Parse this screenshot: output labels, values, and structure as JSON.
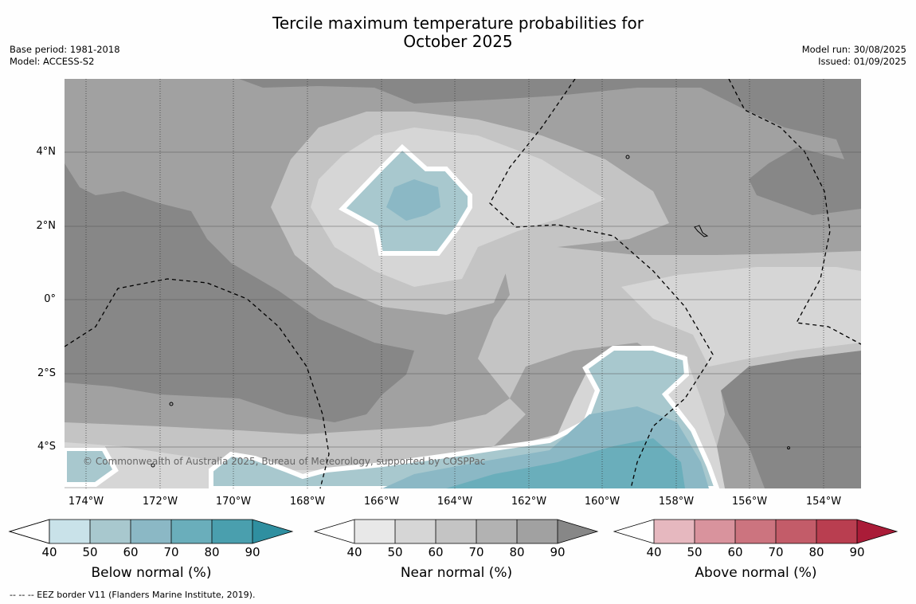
{
  "title_line1": "Tercile maximum temperature probabilities for",
  "title_line2": "October 2025",
  "base_period": "Base period: 1981-2018",
  "model": "Model: ACCESS-S2",
  "model_run": "Model run: 30/08/2025",
  "issued": "Issued: 01/09/2025",
  "copyright": "© Commonwealth of Australia 2025, Bureau of Meteorology, supported by COSPPac",
  "footnote": "--  --  -- EEZ border V11 (Flanders Marine Institute, 2019).",
  "axes": {
    "lat_ticks": [
      "4°N",
      "2°N",
      "0°",
      "2°S",
      "4°S"
    ],
    "lon_ticks": [
      "174°W",
      "172°W",
      "170°W",
      "168°W",
      "166°W",
      "164°W",
      "162°W",
      "160°W",
      "158°W",
      "156°W",
      "154°W"
    ]
  },
  "colorbars": [
    {
      "title": "Below normal (%)",
      "ticks": [
        "40",
        "50",
        "60",
        "70",
        "80",
        "90"
      ],
      "colors": [
        "#ffffff",
        "#c9e2e9",
        "#a8c8ce",
        "#8bb8c5",
        "#6aaebb",
        "#4a9fae",
        "#2f8fa0"
      ]
    },
    {
      "title": "Near normal (%)",
      "ticks": [
        "40",
        "50",
        "60",
        "70",
        "80",
        "90"
      ],
      "colors": [
        "#ffffff",
        "#e8e8e8",
        "#d6d6d6",
        "#c4c4c4",
        "#b2b2b2",
        "#a1a1a1",
        "#878787"
      ]
    },
    {
      "title": "Above normal (%)",
      "ticks": [
        "40",
        "50",
        "60",
        "70",
        "80",
        "90"
      ],
      "colors": [
        "#ffffff",
        "#e6b8bf",
        "#d9939d",
        "#cc747f",
        "#c35c69",
        "#b93e50",
        "#aa1c38"
      ]
    }
  ],
  "palette": {
    "dark_gray": "#878787",
    "mid_gray": "#a1a1a1",
    "gray": "#c4c4c4",
    "light_gray": "#d6d6d6",
    "teal_light": "#a8c8ce",
    "teal_mid": "#8bb8c5",
    "teal_dark": "#6aaebb"
  }
}
